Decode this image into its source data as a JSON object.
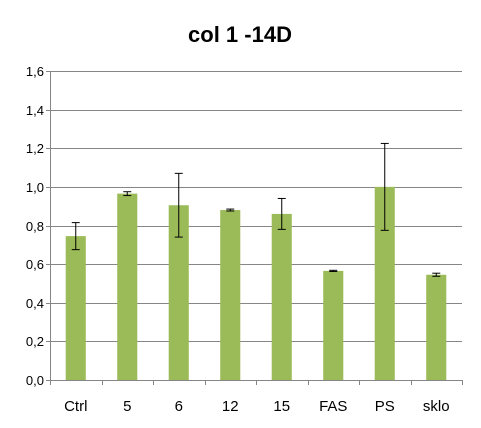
{
  "chart_data": {
    "type": "bar",
    "title": "col 1 -14D",
    "xlabel": "",
    "ylabel": "",
    "ylim": [
      0,
      1.6
    ],
    "ytick_step": 0.2,
    "ytick_labels": [
      "0,0",
      "0,2",
      "0,4",
      "0,6",
      "0,8",
      "1,0",
      "1,2",
      "1,4",
      "1,6"
    ],
    "grid": true,
    "legend": "none",
    "bar_color": "#9bbb59",
    "categories": [
      "Ctrl",
      "5",
      "6",
      "12",
      "15",
      "FAS",
      "PS",
      "sklo"
    ],
    "values": [
      0.745,
      0.965,
      0.905,
      0.88,
      0.86,
      0.565,
      1.0,
      0.545
    ],
    "error": [
      0.07,
      0.01,
      0.165,
      0.005,
      0.08,
      0.003,
      0.225,
      0.008
    ]
  }
}
